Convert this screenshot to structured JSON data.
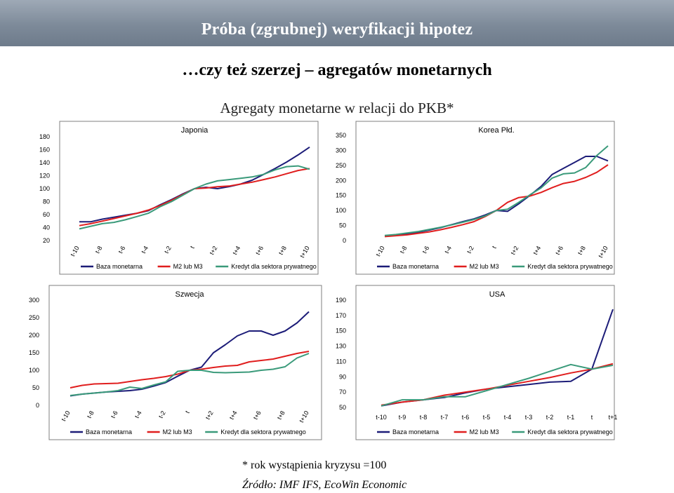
{
  "slide": {
    "title": "Próba (zgrubnej) weryfikacji hipotez",
    "subtitle": "…czy też szerzej – agregatów monetarnych",
    "caption": "Agregaty monetarne w relacji do PKB*",
    "footnote": "* rok wystąpienia kryzysu =100",
    "source": "Źródło: IMF IFS, EcoWin Economic"
  },
  "colors": {
    "Baza monetarna": "#1c1c78",
    "M2 lub M3": "#e01e1e",
    "Kredyt dla sektora prywatnego": "#3a9a7a"
  },
  "chart_data": [
    {
      "type": "line",
      "title": "Japonia",
      "categories": [
        "t-10",
        "",
        "t-8",
        "",
        "t-6",
        "",
        "t-4",
        "",
        "t-2",
        "",
        "t",
        "",
        "t+2",
        "",
        "t+4",
        "",
        "t+6",
        "",
        "t+8",
        "",
        "t+10"
      ],
      "ylim": [
        20,
        180
      ],
      "yticks": [
        20,
        40,
        60,
        80,
        100,
        120,
        140,
        160,
        180
      ],
      "rotate_xticks": true,
      "legend": "bottom",
      "series": [
        {
          "name": "Baza monetarna",
          "values": [
            49,
            49,
            53,
            56,
            59,
            62,
            66,
            75,
            83,
            92,
            100,
            102,
            100,
            103,
            107,
            113,
            122,
            131,
            141,
            152,
            164
          ]
        },
        {
          "name": "M2 lub M3",
          "values": [
            43,
            46,
            50,
            54,
            58,
            62,
            67,
            74,
            82,
            91,
            100,
            101,
            103,
            104,
            107,
            110,
            114,
            118,
            123,
            128,
            131
          ]
        },
        {
          "name": "Kredyt dla sektora prywatnego",
          "values": [
            38,
            42,
            46,
            48,
            52,
            57,
            62,
            72,
            80,
            90,
            100,
            107,
            112,
            114,
            116,
            118,
            122,
            129,
            134,
            135,
            130
          ]
        }
      ]
    },
    {
      "type": "line",
      "title": "Korea Płd.",
      "categories": [
        "t-10",
        "",
        "t-8",
        "",
        "t-6",
        "",
        "t-4",
        "",
        "t-2",
        "",
        "t",
        "",
        "t+2",
        "",
        "t+4",
        "",
        "t+6",
        "",
        "t+8",
        "",
        "t+10"
      ],
      "ylim": [
        0,
        350
      ],
      "yticks": [
        0,
        50,
        100,
        150,
        200,
        250,
        300,
        350
      ],
      "rotate_xticks": true,
      "legend": "bottom",
      "series": [
        {
          "name": "Baza monetarna",
          "values": [
            15,
            18,
            22,
            28,
            35,
            43,
            53,
            63,
            72,
            85,
            100,
            97,
            122,
            150,
            180,
            220,
            240,
            260,
            280,
            280,
            265
          ]
        },
        {
          "name": "M2 lub M3",
          "values": [
            13,
            16,
            19,
            24,
            29,
            36,
            44,
            53,
            63,
            80,
            100,
            127,
            143,
            148,
            160,
            176,
            190,
            197,
            210,
            227,
            252
          ]
        },
        {
          "name": "Kredyt dla sektora prywatnego",
          "values": [
            17,
            20,
            25,
            30,
            37,
            44,
            52,
            61,
            70,
            82,
            100,
            104,
            127,
            152,
            175,
            208,
            222,
            225,
            243,
            283,
            315
          ]
        }
      ]
    },
    {
      "type": "line",
      "title": "Szwecja",
      "categories": [
        "t-10",
        "",
        "t-8",
        "",
        "t-6",
        "",
        "t-4",
        "",
        "t-2",
        "",
        "t",
        "",
        "t+2",
        "",
        "t+4",
        "",
        "t+6",
        "",
        "t+8",
        "",
        "t+10"
      ],
      "ylim": [
        0,
        300
      ],
      "yticks": [
        0,
        50,
        100,
        150,
        200,
        250,
        300
      ],
      "rotate_xticks": true,
      "legend": "bottom",
      "series": [
        {
          "name": "Baza monetarna",
          "values": [
            27,
            32,
            35,
            38,
            40,
            42,
            46,
            55,
            65,
            83,
            100,
            109,
            150,
            173,
            198,
            212,
            212,
            200,
            212,
            235,
            267
          ]
        },
        {
          "name": "M2 lub M3",
          "values": [
            50,
            57,
            61,
            62,
            63,
            68,
            73,
            77,
            82,
            89,
            100,
            103,
            108,
            112,
            114,
            124,
            128,
            132,
            140,
            148,
            154
          ]
        },
        {
          "name": "Kredyt dla sektora prywatnego",
          "values": [
            28,
            32,
            35,
            38,
            42,
            52,
            48,
            58,
            67,
            97,
            100,
            100,
            94,
            93,
            94,
            95,
            100,
            103,
            110,
            135,
            148
          ]
        }
      ]
    },
    {
      "type": "line",
      "title": "USA",
      "categories": [
        "t-10",
        "t-9",
        "t-8",
        "t-7",
        "t-6",
        "t-5",
        "t-4",
        "t-3",
        "t-2",
        "t-1",
        "t",
        "t+1"
      ],
      "ylim": [
        50,
        190
      ],
      "yticks": [
        50,
        70,
        90,
        110,
        130,
        150,
        170,
        190
      ],
      "rotate_xticks": false,
      "legend": "bottom",
      "series": [
        {
          "name": "Baza monetarna",
          "values": [
            52,
            57,
            60,
            63,
            69,
            74,
            77,
            80,
            83,
            84,
            100,
            178
          ]
        },
        {
          "name": "M2 lub M3",
          "values": [
            53,
            57,
            60,
            66,
            70,
            74,
            79,
            84,
            89,
            95,
            100,
            107
          ]
        },
        {
          "name": "Kredyt dla sektora prywatnego",
          "values": [
            52,
            60,
            60,
            64,
            64,
            72,
            80,
            88,
            97,
            106,
            100,
            105
          ]
        }
      ]
    }
  ]
}
